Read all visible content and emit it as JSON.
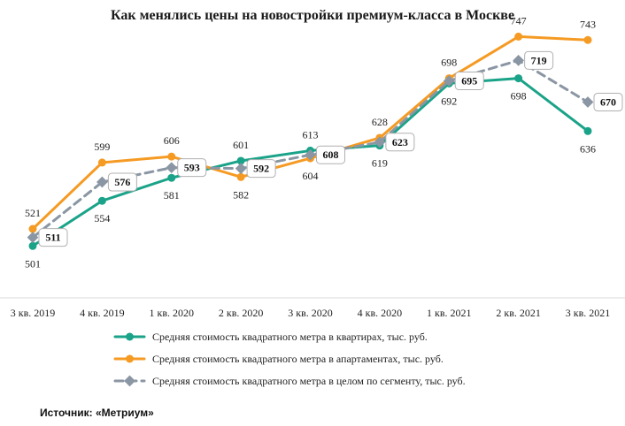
{
  "chart_data": {
    "type": "line",
    "title": "Как менялись цены на новостройки премиум-класса в Москве",
    "categories": [
      "3 кв. 2019",
      "4 кв. 2019",
      "1 кв. 2020",
      "2 кв. 2020",
      "3 кв. 2020",
      "4 кв. 2020",
      "1 кв. 2021",
      "2 кв. 2021",
      "3 кв. 2021"
    ],
    "series": [
      {
        "name": "Средняя стоимость квадратного метра в квартирах, тыс. руб.",
        "values": [
          501,
          554,
          581,
          601,
          613,
          619,
          692,
          698,
          636
        ],
        "color": "#1aa389",
        "style": "solid"
      },
      {
        "name": "Средняя стоимость квадратного метра в апартаментах, тыс. руб.",
        "values": [
          521,
          599,
          606,
          582,
          604,
          628,
          698,
          747,
          743
        ],
        "color": "#f59a23",
        "style": "solid"
      },
      {
        "name": "Средняя стоимость квадратного метра в целом по сегменту, тыс. руб.",
        "values": [
          511,
          576,
          593,
          592,
          608,
          623,
          695,
          719,
          670
        ],
        "color": "#8a96a3",
        "style": "dashed"
      }
    ],
    "ylim": [
      440,
      790
    ],
    "legend_position": "bottom",
    "grid": false
  },
  "source": "Источник: «Метриум»"
}
